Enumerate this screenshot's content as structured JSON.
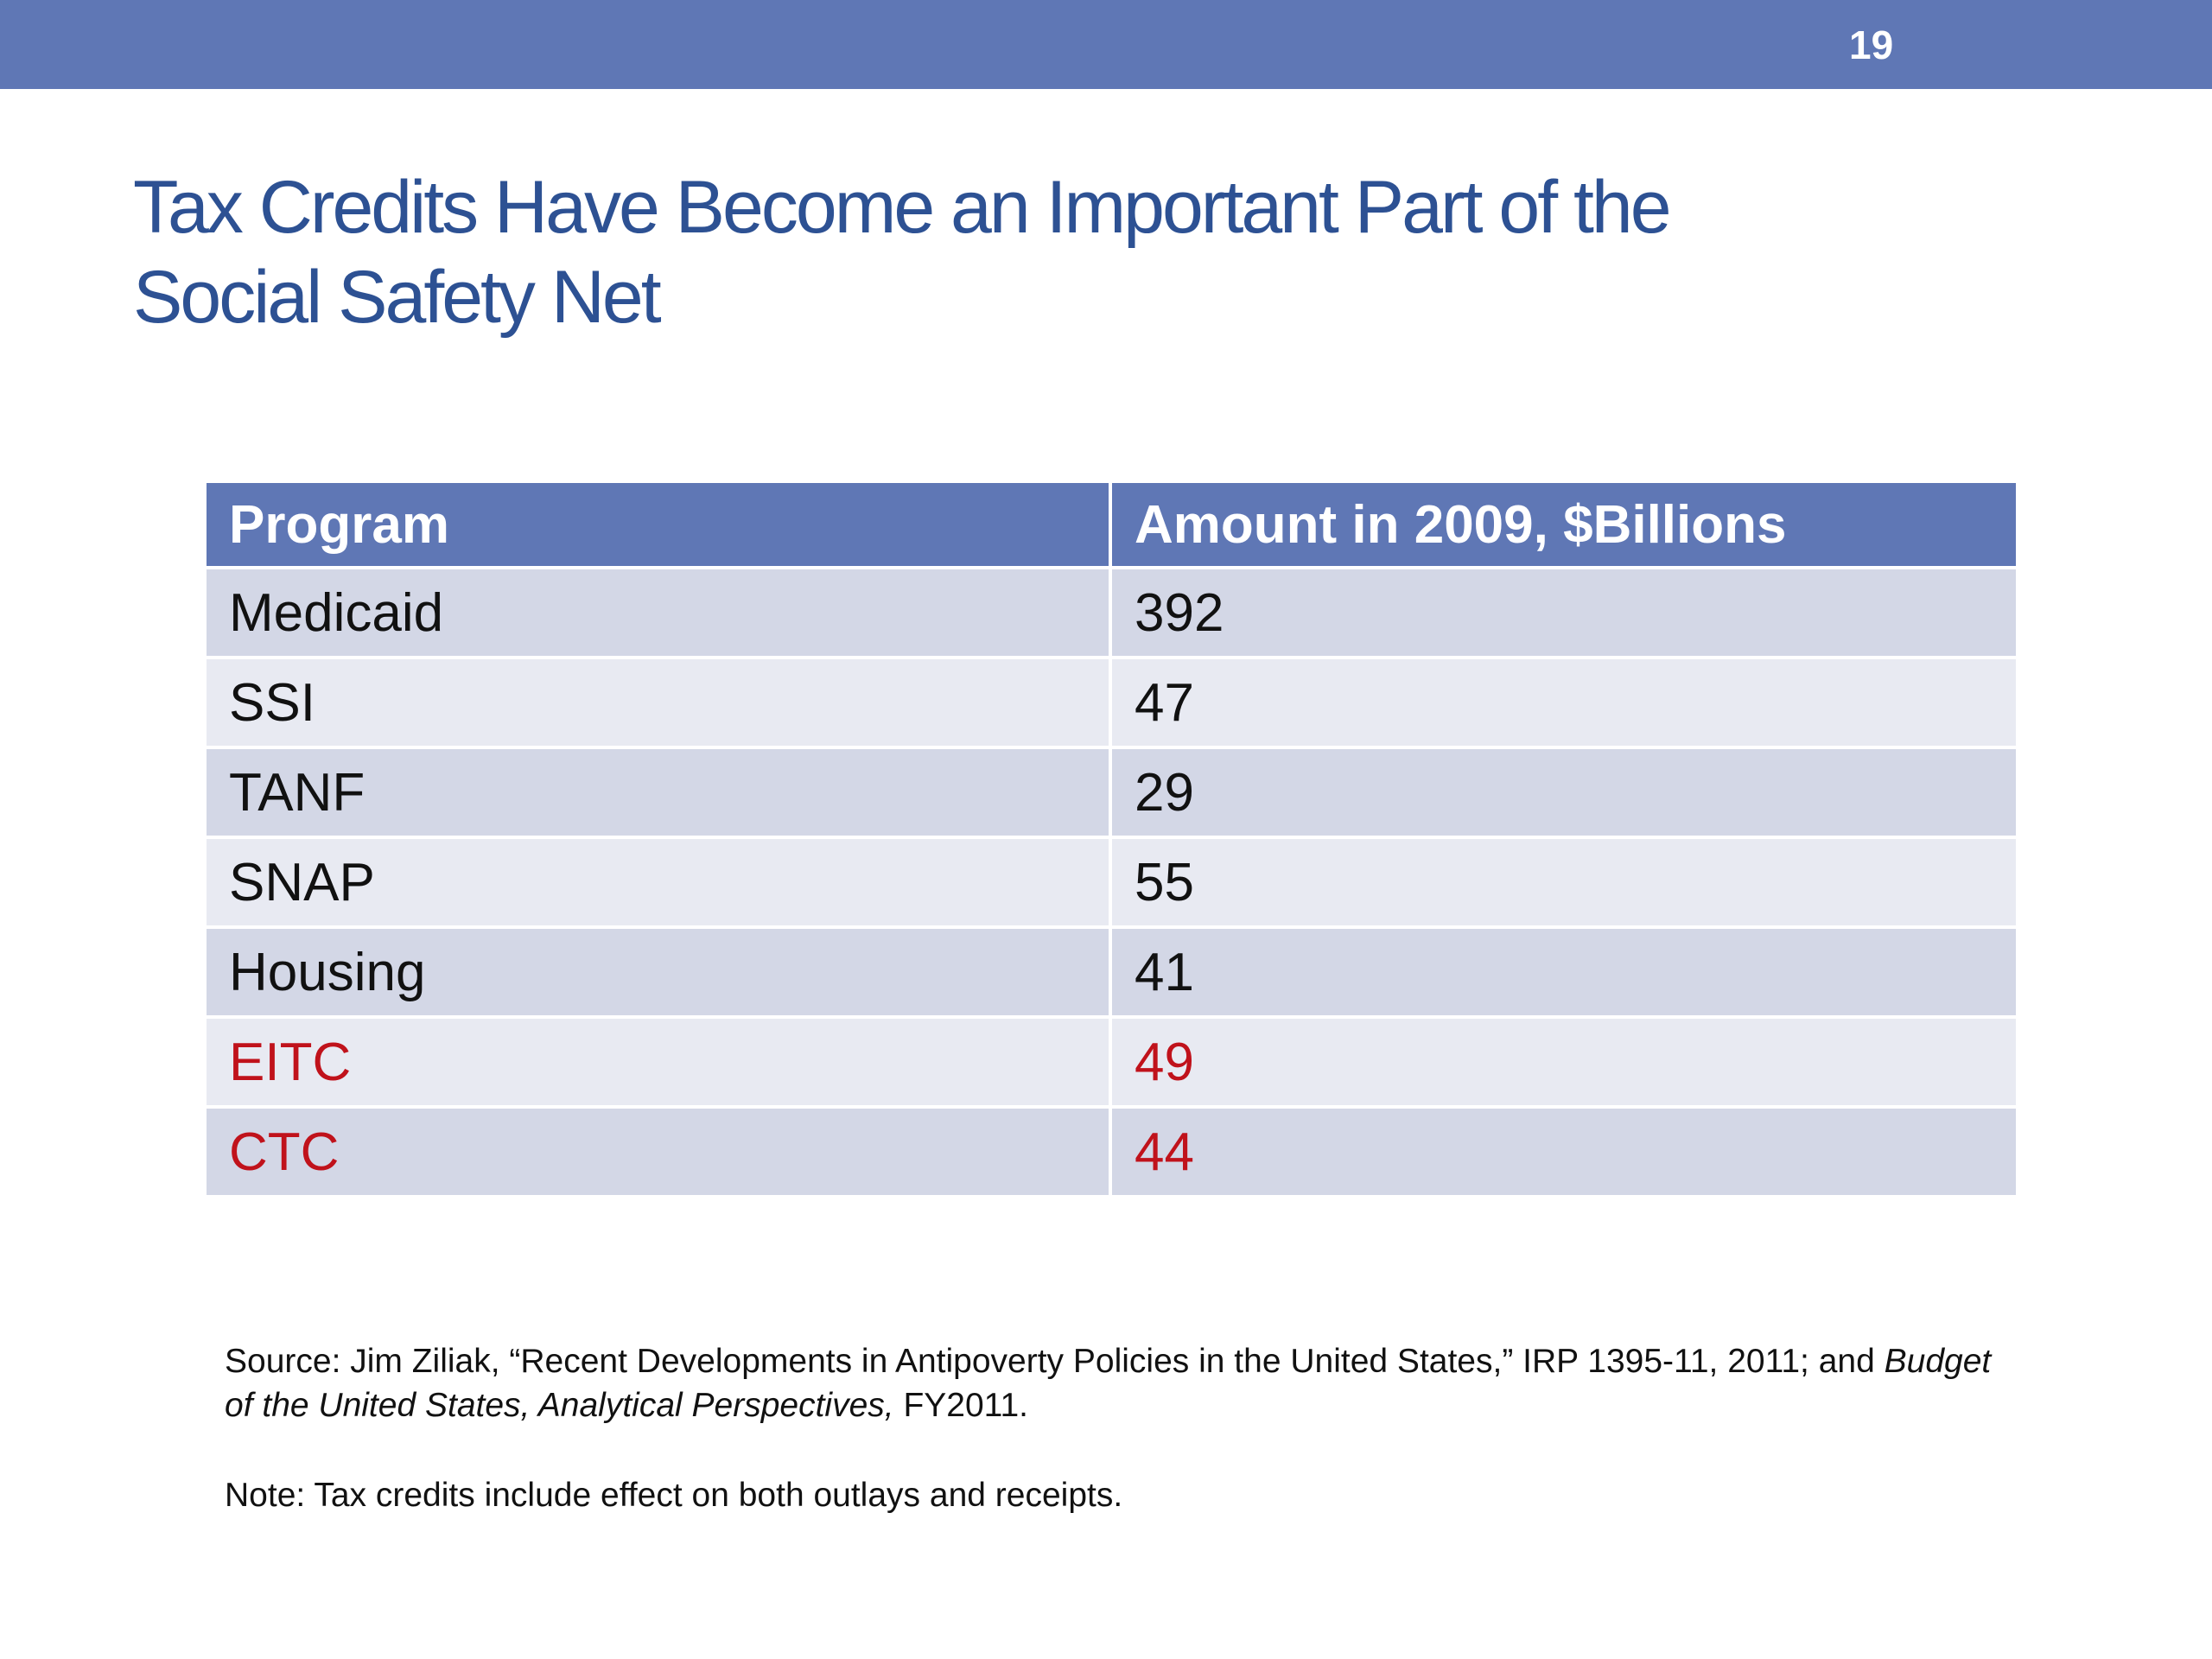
{
  "slide": {
    "number": "19",
    "title_line1": "Tax Credits Have Become an Important Part of the",
    "title_line2": "Social Safety Net"
  },
  "table": {
    "headers": [
      "Program",
      "Amount in 2009, $Billions"
    ],
    "rows": [
      {
        "program": "Medicaid",
        "amount": "392",
        "highlight": false
      },
      {
        "program": "SSI",
        "amount": "47",
        "highlight": false
      },
      {
        "program": "TANF",
        "amount": "29",
        "highlight": false
      },
      {
        "program": "SNAP",
        "amount": "55",
        "highlight": false
      },
      {
        "program": "Housing",
        "amount": "41",
        "highlight": false
      },
      {
        "program": "EITC",
        "amount": "49",
        "highlight": true
      },
      {
        "program": "CTC",
        "amount": "44",
        "highlight": true
      }
    ]
  },
  "footnotes": {
    "source_part1": "Source:  Jim Ziliak, “Recent Developments in Antipoverty Policies in the United States,” IRP 1395-11, 2011; and ",
    "source_italic": "Budget of the United States, Analytical Perspectives,",
    "source_part2": " FY2011.",
    "note": "Note: Tax credits include effect on both outlays and receipts."
  },
  "colors": {
    "bar": "#5f77b5",
    "title": "#2d5193",
    "highlight_text": "#c0121b",
    "row_dark": "#d3d7e6",
    "row_light": "#e8eaf2"
  }
}
